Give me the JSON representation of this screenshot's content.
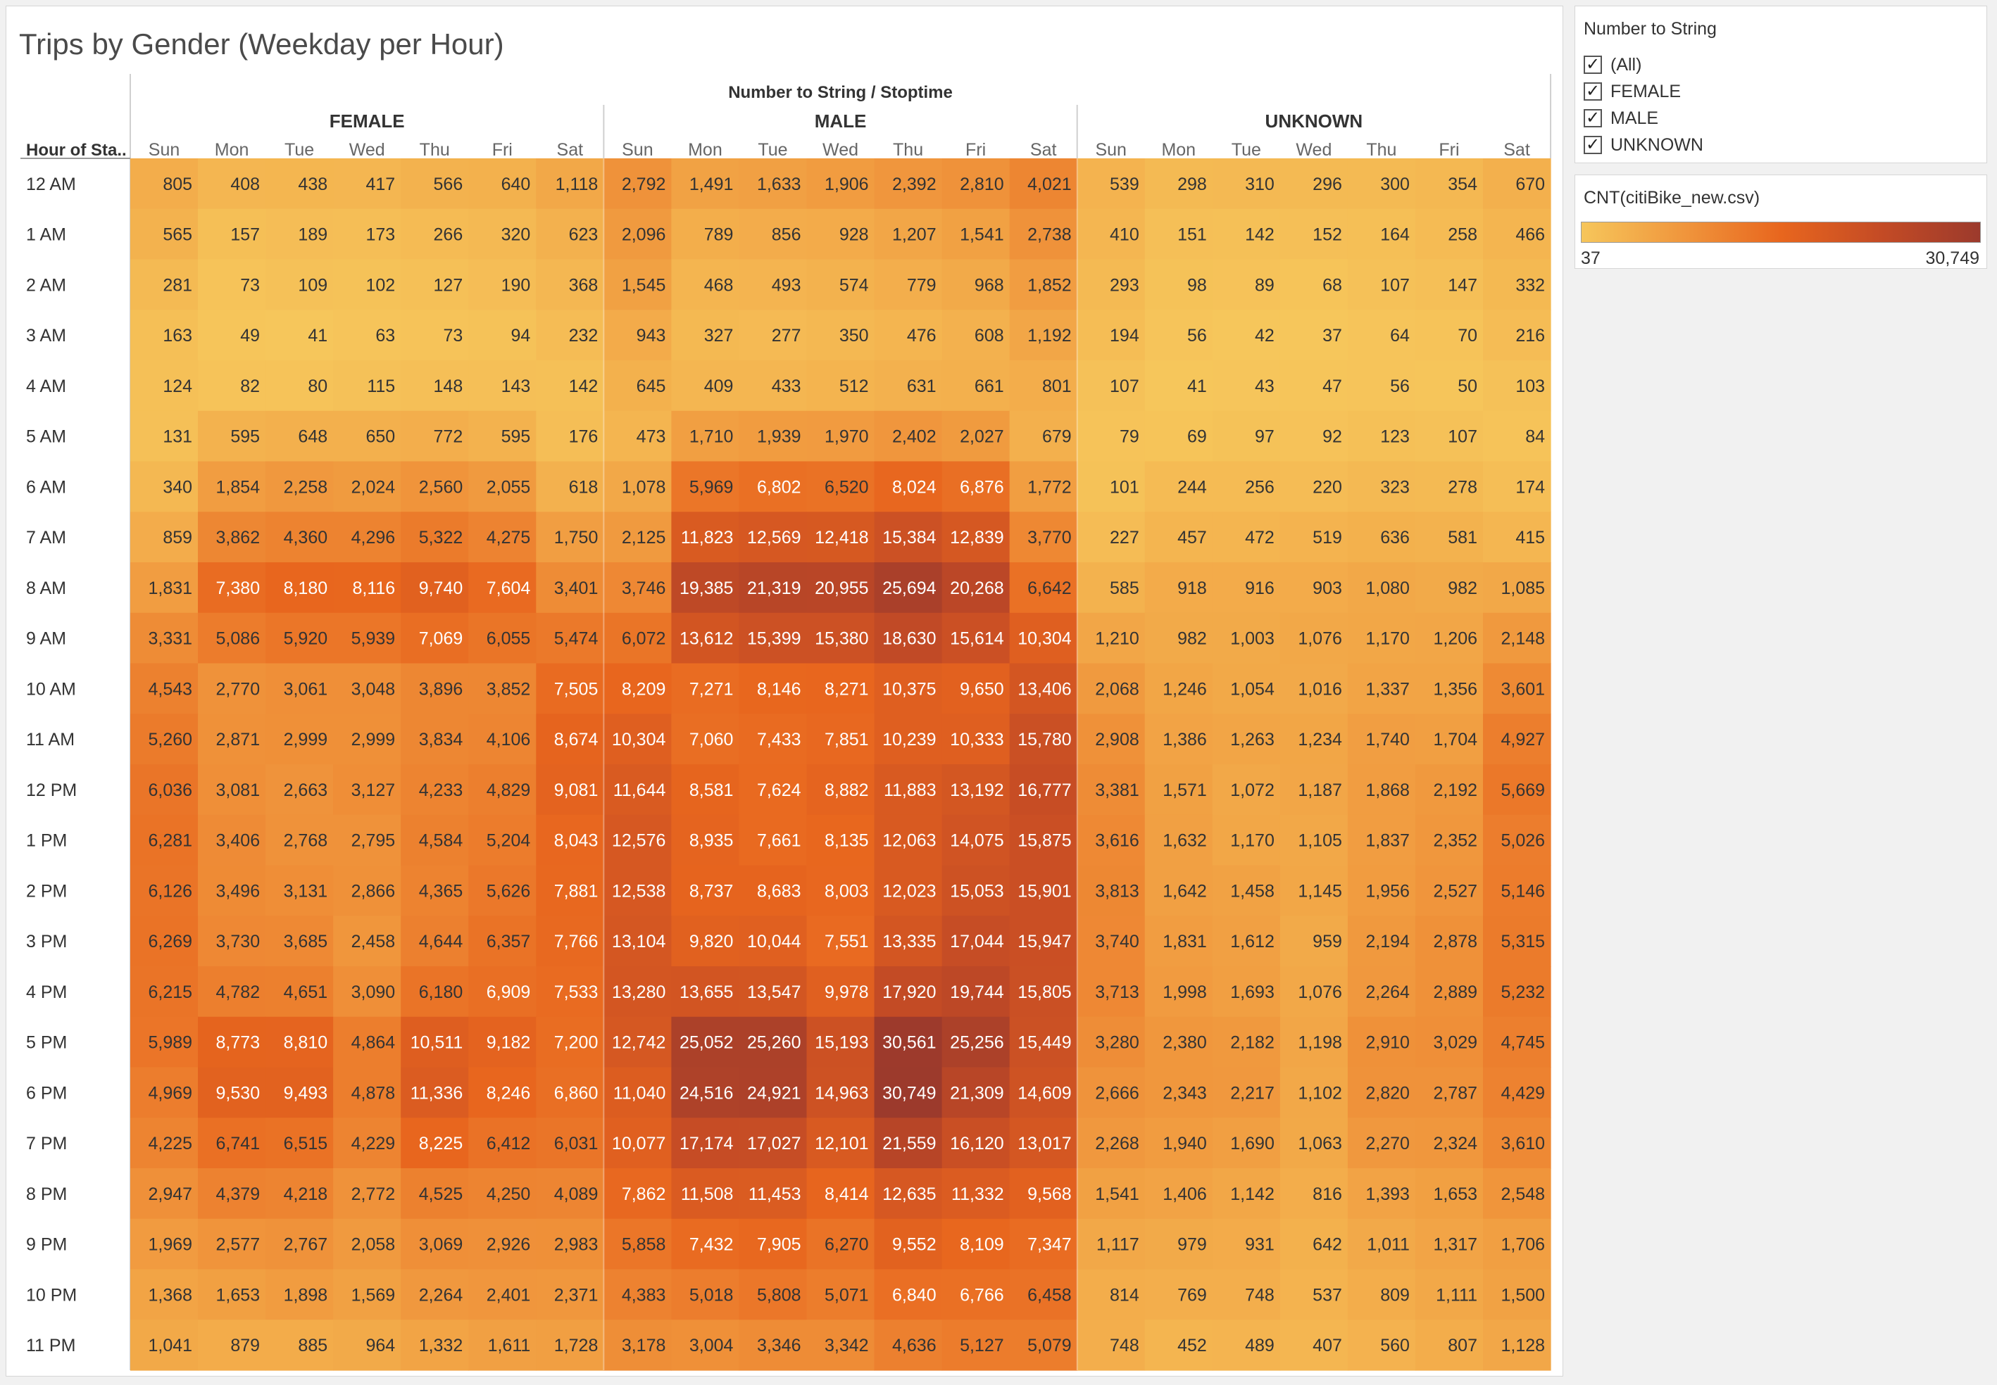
{
  "chart_data": {
    "type": "heatmap",
    "title": "Trips by Gender (Weekday per Hour)",
    "row_header": "Hour of Sta..",
    "column_header": "Number to String  /  Stoptime",
    "groups": [
      "FEMALE",
      "MALE",
      "UNKNOWN"
    ],
    "days": [
      "Sun",
      "Mon",
      "Tue",
      "Wed",
      "Thu",
      "Fri",
      "Sat"
    ],
    "hours": [
      "12 AM",
      "1 AM",
      "2 AM",
      "3 AM",
      "4 AM",
      "5 AM",
      "6 AM",
      "7 AM",
      "8 AM",
      "9 AM",
      "10 AM",
      "11 AM",
      "12 PM",
      "1 PM",
      "2 PM",
      "3 PM",
      "4 PM",
      "5 PM",
      "6 PM",
      "7 PM",
      "8 PM",
      "9 PM",
      "10 PM",
      "11 PM"
    ],
    "values": [
      [
        805,
        408,
        438,
        417,
        566,
        640,
        1118,
        2792,
        1491,
        1633,
        1906,
        2392,
        2810,
        4021,
        539,
        298,
        310,
        296,
        300,
        354,
        670
      ],
      [
        565,
        157,
        189,
        173,
        266,
        320,
        623,
        2096,
        789,
        856,
        928,
        1207,
        1541,
        2738,
        410,
        151,
        142,
        152,
        164,
        258,
        466
      ],
      [
        281,
        73,
        109,
        102,
        127,
        190,
        368,
        1545,
        468,
        493,
        574,
        779,
        968,
        1852,
        293,
        98,
        89,
        68,
        107,
        147,
        332
      ],
      [
        163,
        49,
        41,
        63,
        73,
        94,
        232,
        943,
        327,
        277,
        350,
        476,
        608,
        1192,
        194,
        56,
        42,
        37,
        64,
        70,
        216
      ],
      [
        124,
        82,
        80,
        115,
        148,
        143,
        142,
        645,
        409,
        433,
        512,
        631,
        661,
        801,
        107,
        41,
        43,
        47,
        56,
        50,
        103
      ],
      [
        131,
        595,
        648,
        650,
        772,
        595,
        176,
        473,
        1710,
        1939,
        1970,
        2402,
        2027,
        679,
        79,
        69,
        97,
        92,
        123,
        107,
        84
      ],
      [
        340,
        1854,
        2258,
        2024,
        2560,
        2055,
        618,
        1078,
        5969,
        6802,
        6520,
        8024,
        6876,
        1772,
        101,
        244,
        256,
        220,
        323,
        278,
        174
      ],
      [
        859,
        3862,
        4360,
        4296,
        5322,
        4275,
        1750,
        2125,
        11823,
        12569,
        12418,
        15384,
        12839,
        3770,
        227,
        457,
        472,
        519,
        636,
        581,
        415
      ],
      [
        1831,
        7380,
        8180,
        8116,
        9740,
        7604,
        3401,
        3746,
        19385,
        21319,
        20955,
        25694,
        20268,
        6642,
        585,
        918,
        916,
        903,
        1080,
        982,
        1085
      ],
      [
        3331,
        5086,
        5920,
        5939,
        7069,
        6055,
        5474,
        6072,
        13612,
        15399,
        15380,
        18630,
        15614,
        10304,
        1210,
        982,
        1003,
        1076,
        1170,
        1206,
        2148
      ],
      [
        4543,
        2770,
        3061,
        3048,
        3896,
        3852,
        7505,
        8209,
        7271,
        8146,
        8271,
        10375,
        9650,
        13406,
        2068,
        1246,
        1054,
        1016,
        1337,
        1356,
        3601
      ],
      [
        5260,
        2871,
        2999,
        2999,
        3834,
        4106,
        8674,
        10304,
        7060,
        7433,
        7851,
        10239,
        10333,
        15780,
        2908,
        1386,
        1263,
        1234,
        1740,
        1704,
        4927
      ],
      [
        6036,
        3081,
        2663,
        3127,
        4233,
        4829,
        9081,
        11644,
        8581,
        7624,
        8882,
        11883,
        13192,
        16777,
        3381,
        1571,
        1072,
        1187,
        1868,
        2192,
        5669
      ],
      [
        6281,
        3406,
        2768,
        2795,
        4584,
        5204,
        8043,
        12576,
        8935,
        7661,
        8135,
        12063,
        14075,
        15875,
        3616,
        1632,
        1170,
        1105,
        1837,
        2352,
        5026
      ],
      [
        6126,
        3496,
        3131,
        2866,
        4365,
        5626,
        7881,
        12538,
        8737,
        8683,
        8003,
        12023,
        15053,
        15901,
        3813,
        1642,
        1458,
        1145,
        1956,
        2527,
        5146
      ],
      [
        6269,
        3730,
        3685,
        2458,
        4644,
        6357,
        7766,
        13104,
        9820,
        10044,
        7551,
        13335,
        17044,
        15947,
        3740,
        1831,
        1612,
        959,
        2194,
        2878,
        5315
      ],
      [
        6215,
        4782,
        4651,
        3090,
        6180,
        6909,
        7533,
        13280,
        13655,
        13547,
        9978,
        17920,
        19744,
        15805,
        3713,
        1998,
        1693,
        1076,
        2264,
        2889,
        5232
      ],
      [
        5989,
        8773,
        8810,
        4864,
        10511,
        9182,
        7200,
        12742,
        25052,
        25260,
        15193,
        30561,
        25256,
        15449,
        3280,
        2380,
        2182,
        1198,
        2910,
        3029,
        4745
      ],
      [
        4969,
        9530,
        9493,
        4878,
        11336,
        8246,
        6860,
        11040,
        24516,
        24921,
        14963,
        30749,
        21309,
        14609,
        2666,
        2343,
        2217,
        1102,
        2820,
        2787,
        4429
      ],
      [
        4225,
        6741,
        6515,
        4229,
        8225,
        6412,
        6031,
        10077,
        17174,
        17027,
        12101,
        21559,
        16120,
        13017,
        2268,
        1940,
        1690,
        1063,
        2270,
        2324,
        3610
      ],
      [
        2947,
        4379,
        4218,
        2772,
        4525,
        4250,
        4089,
        7862,
        11508,
        11453,
        8414,
        12635,
        11332,
        9568,
        1541,
        1406,
        1142,
        816,
        1393,
        1653,
        2548
      ],
      [
        1969,
        2577,
        2767,
        2058,
        3069,
        2926,
        2983,
        5858,
        7432,
        7905,
        6270,
        9552,
        8109,
        7347,
        1117,
        979,
        931,
        642,
        1011,
        1317,
        1706
      ],
      [
        1368,
        1653,
        1898,
        1569,
        2264,
        2401,
        2371,
        4383,
        5018,
        5808,
        5071,
        6840,
        6766,
        6458,
        814,
        769,
        748,
        537,
        809,
        1111,
        1500
      ],
      [
        1041,
        879,
        885,
        964,
        1332,
        1611,
        1728,
        3178,
        3004,
        3346,
        3342,
        4636,
        5127,
        5079,
        748,
        452,
        489,
        407,
        560,
        807,
        1128
      ]
    ],
    "color_min": 37,
    "color_max": 30749,
    "color_stops": [
      "#f6c65b",
      "#f0973d",
      "#e8661e",
      "#c44b25",
      "#9c3a2c"
    ]
  },
  "filter": {
    "title": "Number to String",
    "items": [
      {
        "label": "(All)",
        "checked": true
      },
      {
        "label": "FEMALE",
        "checked": true
      },
      {
        "label": "MALE",
        "checked": true
      },
      {
        "label": "UNKNOWN",
        "checked": true
      }
    ]
  },
  "legend": {
    "title": "CNT(citiBike_new.csv)",
    "min_label": "37",
    "max_label": "30,749"
  }
}
